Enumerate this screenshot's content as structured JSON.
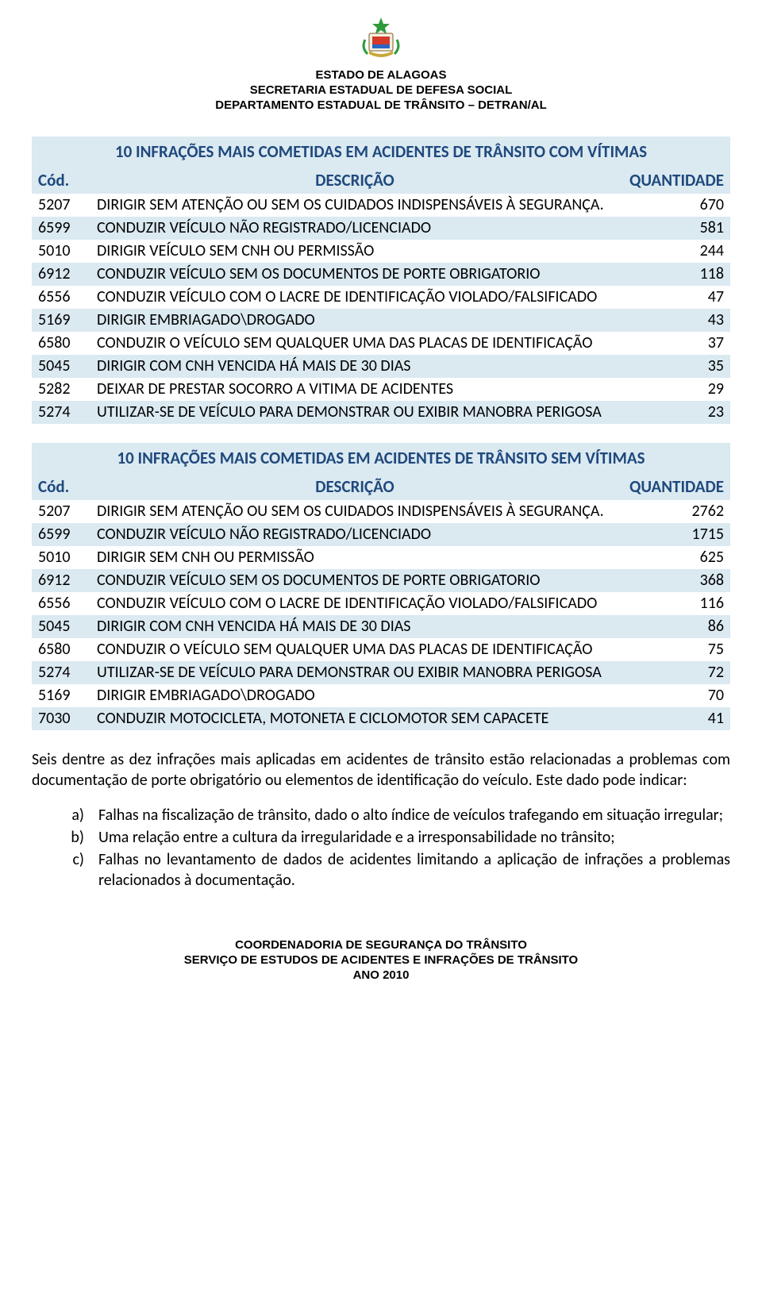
{
  "colors": {
    "accent_bg": "#dbe9f1",
    "accent_text": "#1f497d",
    "body_text": "#000000",
    "page_bg": "#ffffff"
  },
  "typography": {
    "header_font": "Arial",
    "body_font": "Calibri",
    "header_size_pt": 11,
    "title_size_pt": 16,
    "body_size_pt": 15
  },
  "header": {
    "line1": "ESTADO DE ALAGOAS",
    "line2": "SECRETARIA ESTADUAL DE DEFESA SOCIAL",
    "line3": "DEPARTAMENTO ESTADUAL DE TRÂNSITO – DETRAN/AL"
  },
  "table1": {
    "title": "10 INFRAÇÕES MAIS COMETIDAS EM ACIDENTES DE TRÂNSITO COM VÍTIMAS",
    "columns": {
      "cod": "Cód.",
      "desc": "DESCRIÇÃO",
      "qty": "QUANTIDADE"
    },
    "rows": [
      {
        "cod": "5207",
        "desc": "DIRIGIR SEM ATENÇÃO OU SEM OS CUIDADOS INDISPENSÁVEIS À SEGURANÇA.",
        "qty": "670",
        "striped": false
      },
      {
        "cod": "6599",
        "desc": "CONDUZIR VEÍCULO NÃO REGISTRADO/LICENCIADO",
        "qty": "581",
        "striped": true
      },
      {
        "cod": "5010",
        "desc": "DIRIGIR VEÍCULO SEM CNH OU PERMISSÃO",
        "qty": "244",
        "striped": false
      },
      {
        "cod": "6912",
        "desc": "CONDUZIR VEÍCULO SEM OS DOCUMENTOS DE PORTE OBRIGATORIO",
        "qty": "118",
        "striped": true
      },
      {
        "cod": "6556",
        "desc": "CONDUZIR VEÍCULO COM O LACRE DE IDENTIFICAÇÃO VIOLADO/FALSIFICADO",
        "qty": "47",
        "striped": false
      },
      {
        "cod": "5169",
        "desc": "DIRIGIR EMBRIAGADO\\DROGADO",
        "qty": "43",
        "striped": true
      },
      {
        "cod": "6580",
        "desc": "CONDUZIR O VEÍCULO SEM QUALQUER UMA DAS PLACAS DE IDENTIFICAÇÃO",
        "qty": "37",
        "striped": false
      },
      {
        "cod": "5045",
        "desc": "DIRIGIR COM CNH VENCIDA HÁ MAIS DE 30 DIAS",
        "qty": "35",
        "striped": true
      },
      {
        "cod": "5282",
        "desc": "DEIXAR DE PRESTAR SOCORRO A VITIMA DE ACIDENTES",
        "qty": "29",
        "striped": false
      },
      {
        "cod": "5274",
        "desc": "UTILIZAR-SE DE VEÍCULO PARA DEMONSTRAR OU EXIBIR MANOBRA PERIGOSA",
        "qty": "23",
        "striped": true
      }
    ]
  },
  "table2": {
    "title": "10 INFRAÇÕES MAIS COMETIDAS EM ACIDENTES DE TRÂNSITO SEM VÍTIMAS",
    "columns": {
      "cod": "Cód.",
      "desc": "DESCRIÇÃO",
      "qty": "QUANTIDADE"
    },
    "rows": [
      {
        "cod": "5207",
        "desc": "DIRIGIR SEM ATENÇÃO OU SEM OS CUIDADOS INDISPENSÁVEIS À SEGURANÇA.",
        "qty": "2762",
        "striped": false
      },
      {
        "cod": "6599",
        "desc": "CONDUZIR VEÍCULO NÃO REGISTRADO/LICENCIADO",
        "qty": "1715",
        "striped": true
      },
      {
        "cod": "5010",
        "desc": "DIRIGIR SEM CNH OU PERMISSÃO",
        "qty": "625",
        "striped": false
      },
      {
        "cod": "6912",
        "desc": "CONDUZIR VEÍCULO SEM OS DOCUMENTOS DE PORTE OBRIGATORIO",
        "qty": "368",
        "striped": true
      },
      {
        "cod": "6556",
        "desc": "CONDUZIR VEÍCULO COM O LACRE DE IDENTIFICAÇÃO VIOLADO/FALSIFICADO",
        "qty": "116",
        "striped": false
      },
      {
        "cod": "5045",
        "desc": "DIRIGIR COM CNH VENCIDA HÁ MAIS DE 30 DIAS",
        "qty": "86",
        "striped": true
      },
      {
        "cod": "6580",
        "desc": "CONDUZIR O VEÍCULO SEM QUALQUER UMA DAS PLACAS DE IDENTIFICAÇÃO",
        "qty": "75",
        "striped": false
      },
      {
        "cod": "5274",
        "desc": "UTILIZAR-SE DE VEÍCULO PARA DEMONSTRAR OU EXIBIR MANOBRA PERIGOSA",
        "qty": "72",
        "striped": true
      },
      {
        "cod": "5169",
        "desc": "DIRIGIR EMBRIAGADO\\DROGADO",
        "qty": "70",
        "striped": false
      },
      {
        "cod": "7030",
        "desc": "CONDUZIR MOTOCICLETA, MOTONETA E CICLOMOTOR SEM CAPACETE",
        "qty": "41",
        "striped": true
      }
    ]
  },
  "paragraph": "Seis dentre as dez infrações mais aplicadas em acidentes de trânsito estão relacionadas a problemas com documentação de porte obrigatório ou elementos de identificação do veículo. Este dado pode indicar:",
  "list": {
    "items": [
      {
        "marker": "a)",
        "text": "Falhas na fiscalização de trânsito, dado o alto índice de veículos trafegando em situação irregular;"
      },
      {
        "marker": "b)",
        "text": "Uma relação entre a cultura da irregularidade e a irresponsabilidade no trânsito;"
      },
      {
        "marker": "c)",
        "text": "Falhas no levantamento de dados de acidentes limitando a aplicação de infrações a problemas relacionados à documentação."
      }
    ]
  },
  "footer": {
    "line1": "COORDENADORIA DE SEGURANÇA DO TRÂNSITO",
    "line2": "SERVIÇO DE ESTUDOS DE ACIDENTES E INFRAÇÕES DE TRÂNSITO",
    "line3": "ANO 2010"
  }
}
